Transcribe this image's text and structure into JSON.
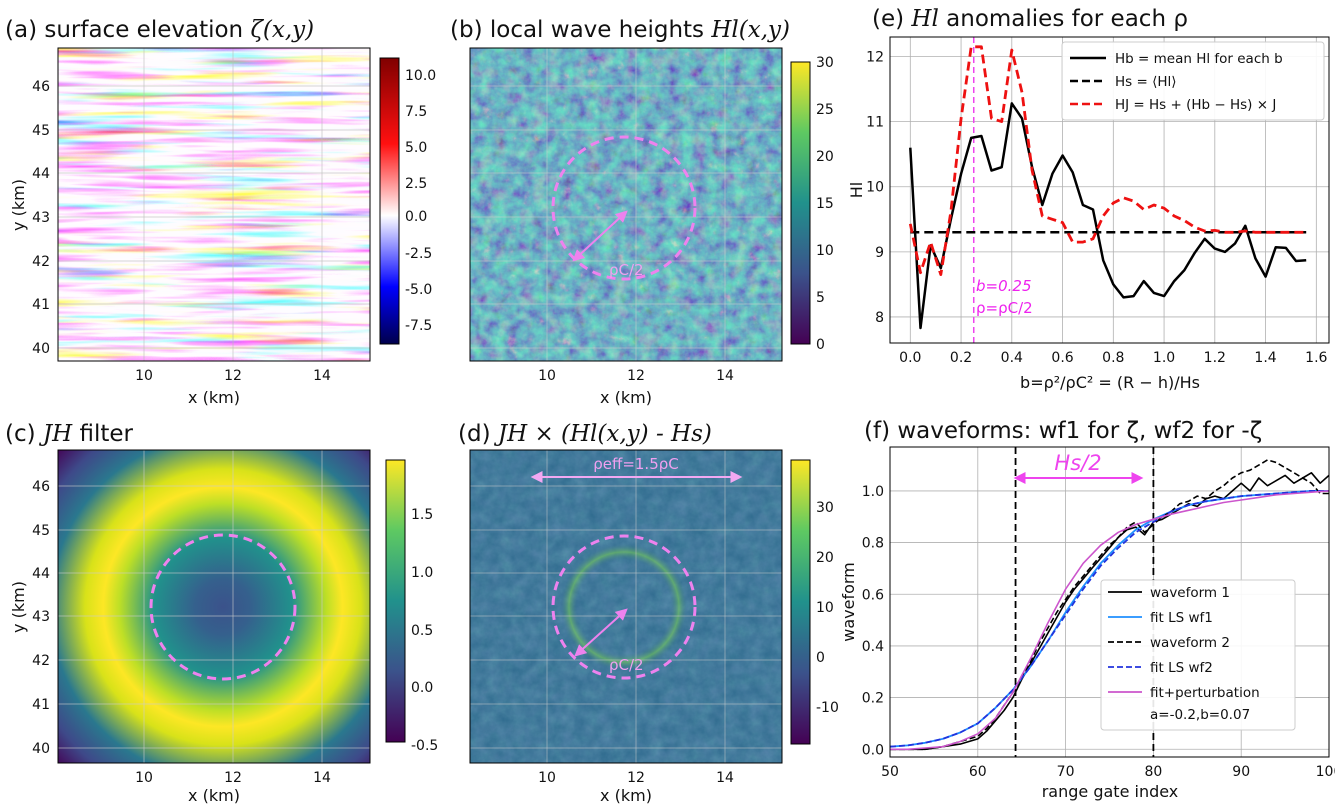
{
  "colors": {
    "black": "#000000",
    "red": "#ee1111",
    "magenta": "#ee22ee",
    "pink_dashed": "#ee82ee",
    "fit_blue": "#1f8fff",
    "fit_dblue": "#2233dd",
    "violet_line": "#cc55cc"
  },
  "panels": {
    "a": {
      "title": "(a) surface elevation ",
      "title_math": "ζ(x,y)",
      "ylabel": "y (km)",
      "xlabel": "x (km)",
      "xticks": [
        "10",
        "12",
        "14"
      ],
      "yticks": [
        "40",
        "41",
        "42",
        "43",
        "44",
        "45",
        "46"
      ],
      "cbar_ticks": [
        "10.0",
        "7.5",
        "5.0",
        "2.5",
        "0.0",
        "-2.5",
        "-5.0",
        "-7.5"
      ],
      "colormap": "seismic"
    },
    "b": {
      "title": "(b) local wave heights ",
      "title_math": "Hl(x,y)",
      "xlabel": "x (km)",
      "xticks": [
        "10",
        "12",
        "14"
      ],
      "cbar_ticks": [
        "30",
        "25",
        "20",
        "15",
        "10",
        "5",
        "0"
      ],
      "annotation": "ρC/2",
      "colormap": "viridis"
    },
    "c": {
      "title": "(c) ",
      "title_math": "JH",
      "title_tail": " filter",
      "ylabel": "y (km)",
      "xlabel": "x (km)",
      "xticks": [
        "10",
        "12",
        "14"
      ],
      "yticks": [
        "40",
        "41",
        "42",
        "43",
        "44",
        "45",
        "46"
      ],
      "cbar_ticks": [
        "1.5",
        "1.0",
        "0.5",
        "0.0",
        "-0.5"
      ],
      "colormap": "viridis"
    },
    "d": {
      "title": "(d) ",
      "title_math": "JH  × (Hl(x,y) - Hs)",
      "xlabel": "x (km)",
      "xticks": [
        "10",
        "12",
        "14"
      ],
      "cbar_ticks": [
        "30",
        "20",
        "10",
        "0",
        "-10"
      ],
      "annotation_top": "ρeff=1.5ρC",
      "annotation": "ρC/2",
      "colormap": "viridis"
    },
    "e": {
      "title": "(e) ",
      "title_math": "Hl",
      "title_tail": " anomalies for each ρ",
      "ylabel": "Hl",
      "xlabel": "b=ρ²/ρC² = (R − h)/Hs",
      "legend": [
        "Hb = mean Hl for each b",
        "Hs = ⟨Hl⟩",
        "HJ = Hs + (Hb − Hs) × J"
      ],
      "annotation_b": "b=0.25",
      "annotation_rho": "ρ=ρC/2"
    },
    "f": {
      "title": "(f) waveforms: wf1 for ζ, wf2 for -ζ",
      "ylabel": "waveform",
      "xlabel": "range gate index",
      "annotation": "Hs/2",
      "legend": [
        "waveform 1",
        "fit LS wf1",
        "waveform 2",
        "fit LS wf2",
        "fit+perturbation",
        "a=-0.2,b=0.07"
      ]
    }
  },
  "chart_data": [
    {
      "type": "heatmap",
      "panel": "a",
      "title": "(a) surface elevation ζ(x,y)",
      "xlabel": "x (km)",
      "ylabel": "y (km)",
      "xlim": [
        8.2,
        15.3
      ],
      "ylim": [
        39.8,
        46.7
      ],
      "colorbar_range": [
        -9,
        11
      ]
    },
    {
      "type": "heatmap",
      "panel": "b",
      "title": "(b) local wave heights Hl(x,y)",
      "xlabel": "x (km)",
      "xlim": [
        8.2,
        15.3
      ],
      "ylim": [
        39.8,
        46.7
      ],
      "colorbar_range": [
        0,
        30
      ],
      "circle_center": [
        11.8,
        43.2
      ],
      "circle_radius": 1.6
    },
    {
      "type": "heatmap",
      "panel": "c",
      "title": "(c) JH filter",
      "xlabel": "x (km)",
      "ylabel": "y (km)",
      "xlim": [
        8.2,
        15.3
      ],
      "ylim": [
        39.8,
        46.7
      ],
      "colorbar_range": [
        -0.55,
        1.9
      ],
      "circle_center": [
        11.8,
        43.2
      ],
      "circle_radius": 1.6
    },
    {
      "type": "heatmap",
      "panel": "d",
      "title": "(d) JH × (Hl(x,y) - Hs)",
      "xlabel": "x (km)",
      "xlim": [
        8.2,
        15.3
      ],
      "ylim": [
        39.8,
        46.7
      ],
      "colorbar_range": [
        -18,
        39
      ],
      "circle_center": [
        11.8,
        43.2
      ],
      "circle_radius": 1.6
    },
    {
      "type": "line",
      "panel": "e",
      "title": "(e) Hl anomalies for each ρ",
      "xlabel": "b=ρ²/ρC² = (R − h)/Hs",
      "ylabel": "Hl",
      "xlim": [
        -0.08,
        1.65
      ],
      "ylim": [
        7.6,
        12.3
      ],
      "xticks": [
        0.0,
        0.2,
        0.4,
        0.6,
        0.8,
        1.0,
        1.2,
        1.4,
        1.6
      ],
      "yticks": [
        8,
        9,
        10,
        11,
        12
      ],
      "grid": true,
      "legend_position": "top-right",
      "vline_x": 0.25,
      "series": [
        {
          "name": "Hb = mean Hl for each b",
          "style": "solid",
          "color": "#000000",
          "x": [
            0.0,
            0.04,
            0.08,
            0.12,
            0.16,
            0.2,
            0.24,
            0.28,
            0.32,
            0.36,
            0.4,
            0.44,
            0.48,
            0.52,
            0.56,
            0.6,
            0.64,
            0.68,
            0.72,
            0.76,
            0.8,
            0.84,
            0.88,
            0.92,
            0.96,
            1.0,
            1.04,
            1.08,
            1.12,
            1.16,
            1.2,
            1.24,
            1.28,
            1.32,
            1.36,
            1.4,
            1.44,
            1.48,
            1.52,
            1.56
          ],
          "y": [
            10.6,
            7.83,
            9.1,
            8.75,
            9.5,
            10.2,
            10.75,
            10.78,
            10.25,
            10.3,
            11.28,
            11.05,
            10.3,
            9.72,
            10.2,
            10.48,
            10.22,
            9.72,
            9.65,
            8.87,
            8.5,
            8.3,
            8.32,
            8.55,
            8.37,
            8.32,
            8.55,
            8.72,
            8.98,
            9.2,
            9.05,
            9.0,
            9.13,
            9.4,
            8.9,
            8.62,
            9.07,
            9.06,
            8.86,
            8.87
          ]
        },
        {
          "name": "Hs = ⟨Hl⟩",
          "style": "dashed",
          "color": "#000000",
          "x": [
            0.0,
            1.56
          ],
          "y": [
            9.3,
            9.3
          ]
        },
        {
          "name": "HJ = Hs + (Hb − Hs) × J",
          "style": "dashed",
          "color": "#ee1111",
          "x": [
            0.0,
            0.04,
            0.08,
            0.12,
            0.16,
            0.2,
            0.24,
            0.28,
            0.32,
            0.36,
            0.4,
            0.44,
            0.48,
            0.52,
            0.56,
            0.6,
            0.64,
            0.68,
            0.72,
            0.76,
            0.8,
            0.84,
            0.88,
            0.92,
            0.96,
            1.0,
            1.04,
            1.08,
            1.12,
            1.16,
            1.2,
            1.24,
            1.28,
            1.32,
            1.36,
            1.4,
            1.44,
            1.48,
            1.52,
            1.56
          ],
          "y": [
            9.43,
            8.68,
            9.15,
            8.65,
            9.62,
            11.05,
            12.15,
            12.15,
            11.05,
            11.0,
            12.1,
            11.45,
            10.25,
            9.55,
            9.5,
            9.45,
            9.15,
            9.15,
            9.2,
            9.55,
            9.75,
            9.83,
            9.78,
            9.65,
            9.72,
            9.67,
            9.55,
            9.48,
            9.38,
            9.32,
            9.33,
            9.3,
            9.3,
            9.32,
            9.3,
            9.3,
            9.3,
            9.3,
            9.3,
            9.3
          ]
        }
      ]
    },
    {
      "type": "line",
      "panel": "f",
      "title": "(f) waveforms: wf1 for ζ, wf2 for -ζ",
      "xlabel": "range gate index",
      "ylabel": "waveform",
      "xlim": [
        50,
        100
      ],
      "ylim": [
        -0.03,
        1.17
      ],
      "xticks": [
        50,
        60,
        70,
        80,
        90,
        100
      ],
      "yticks": [
        0.0,
        0.2,
        0.4,
        0.6,
        0.8,
        1.0
      ],
      "grid": true,
      "legend_position": "bottom-right",
      "vlines_x": [
        64.3,
        80.0
      ],
      "series": [
        {
          "name": "waveform 1",
          "style": "solid",
          "color": "#000000",
          "x": [
            50,
            52,
            54,
            56,
            58,
            60,
            61,
            62,
            63,
            64,
            65,
            66,
            67,
            68,
            69,
            70,
            71,
            72,
            73,
            74,
            75,
            76,
            77,
            78,
            79,
            80,
            81,
            82,
            83,
            84,
            85,
            86,
            87,
            88,
            89,
            90,
            91,
            92,
            93,
            94,
            95,
            96,
            97,
            98,
            99,
            100
          ],
          "y": [
            0.0,
            0.0,
            0.0,
            0.01,
            0.02,
            0.04,
            0.07,
            0.11,
            0.15,
            0.2,
            0.27,
            0.33,
            0.39,
            0.45,
            0.51,
            0.57,
            0.62,
            0.66,
            0.7,
            0.74,
            0.78,
            0.82,
            0.85,
            0.86,
            0.83,
            0.88,
            0.89,
            0.91,
            0.93,
            0.95,
            0.94,
            0.97,
            0.98,
            0.97,
            1.0,
            1.03,
            1.0,
            1.05,
            1.02,
            1.04,
            1.06,
            1.03,
            1.05,
            1.07,
            1.03,
            1.06
          ]
        },
        {
          "name": "fit LS wf1",
          "style": "solid",
          "color": "#1f8fff",
          "x": [
            50,
            52,
            54,
            56,
            58,
            60,
            62,
            64,
            66,
            68,
            70,
            72,
            74,
            76,
            78,
            80,
            82,
            84,
            86,
            88,
            90,
            92,
            94,
            96,
            98,
            100
          ],
          "y": [
            0.01,
            0.015,
            0.025,
            0.04,
            0.065,
            0.1,
            0.16,
            0.23,
            0.32,
            0.42,
            0.53,
            0.63,
            0.72,
            0.79,
            0.85,
            0.89,
            0.92,
            0.945,
            0.96,
            0.97,
            0.98,
            0.985,
            0.99,
            0.995,
            1.0,
            1.0
          ]
        },
        {
          "name": "waveform 2",
          "style": "dashed",
          "color": "#000000",
          "x": [
            50,
            52,
            54,
            56,
            58,
            60,
            61,
            62,
            63,
            64,
            65,
            66,
            67,
            68,
            69,
            70,
            71,
            72,
            73,
            74,
            75,
            76,
            77,
            78,
            79,
            80,
            81,
            82,
            83,
            84,
            85,
            86,
            87,
            88,
            89,
            90,
            91,
            92,
            93,
            94,
            95,
            96,
            97,
            98,
            99,
            100
          ],
          "y": [
            0.0,
            0.0,
            0.0,
            0.01,
            0.03,
            0.05,
            0.08,
            0.12,
            0.17,
            0.22,
            0.28,
            0.34,
            0.41,
            0.47,
            0.53,
            0.58,
            0.63,
            0.67,
            0.71,
            0.75,
            0.79,
            0.82,
            0.86,
            0.88,
            0.84,
            0.87,
            0.9,
            0.92,
            0.95,
            0.96,
            0.98,
            0.97,
            1.0,
            1.02,
            1.05,
            1.07,
            1.08,
            1.1,
            1.12,
            1.11,
            1.09,
            1.07,
            1.05,
            1.03,
            0.99,
            0.99
          ]
        },
        {
          "name": "fit LS wf2",
          "style": "dashed",
          "color": "#2233dd",
          "x": [
            50,
            52,
            54,
            56,
            58,
            60,
            62,
            64,
            66,
            68,
            70,
            72,
            74,
            76,
            78,
            80,
            82,
            84,
            86,
            88,
            90,
            92,
            94,
            96,
            98,
            100
          ],
          "y": [
            0.01,
            0.015,
            0.025,
            0.04,
            0.065,
            0.1,
            0.16,
            0.23,
            0.32,
            0.42,
            0.52,
            0.62,
            0.71,
            0.78,
            0.84,
            0.88,
            0.92,
            0.945,
            0.96,
            0.97,
            0.98,
            0.985,
            0.99,
            0.995,
            1.0,
            1.0
          ]
        },
        {
          "name": "fit+perturbation",
          "style": "solid",
          "color": "#cc55cc",
          "x": [
            50,
            52,
            54,
            56,
            58,
            60,
            62,
            64,
            66,
            68,
            70,
            72,
            74,
            76,
            78,
            80,
            82,
            84,
            86,
            88,
            90,
            92,
            94,
            96,
            98,
            100
          ],
          "y": [
            0.0,
            0.0,
            0.005,
            0.01,
            0.03,
            0.06,
            0.12,
            0.22,
            0.35,
            0.49,
            0.62,
            0.72,
            0.79,
            0.84,
            0.87,
            0.89,
            0.91,
            0.925,
            0.94,
            0.955,
            0.965,
            0.975,
            0.985,
            0.99,
            0.995,
            1.0
          ]
        }
      ]
    }
  ]
}
